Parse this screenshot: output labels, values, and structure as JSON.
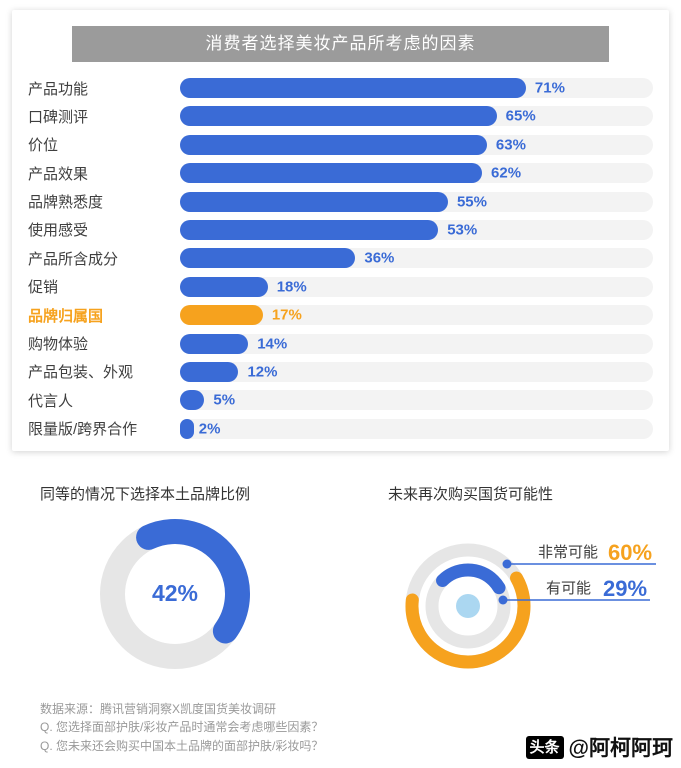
{
  "colors": {
    "blue": "#3A6BD6",
    "orange": "#F6A21E",
    "banner": "#9B9B9B",
    "bar_track": "#F3F3F3",
    "ring_track": "#E6E6E6",
    "center_dot": "#ABD7F1",
    "text_dark": "#3F3F3F",
    "text_gray": "#999999"
  },
  "chart_data": [
    {
      "type": "bar",
      "orientation": "horizontal",
      "title": "消费者选择美妆产品所考虑的因素",
      "unit": "%",
      "xlim": [
        0,
        100
      ],
      "categories": [
        "产品功能",
        "口碑测评",
        "价位",
        "产品效果",
        "品牌熟悉度",
        "使用感受",
        "产品所含成分",
        "促销",
        "品牌归属国",
        "购物体验",
        "产品包装、外观",
        "代言人",
        "限量版/跨界合作"
      ],
      "values": [
        71,
        65,
        63,
        62,
        55,
        53,
        36,
        18,
        17,
        14,
        12,
        5,
        2
      ],
      "highlight_category": "品牌归属国"
    },
    {
      "type": "pie",
      "title": "同等的情况下选择本土品牌比例",
      "values": [
        42
      ],
      "center_label": "42%"
    },
    {
      "type": "pie",
      "title": "未来再次购买国货可能性",
      "series": [
        {
          "name": "非常可能",
          "value": 60,
          "display": "60%"
        },
        {
          "name": "有可能",
          "value": 29,
          "display": "29%"
        }
      ]
    }
  ],
  "footnotes": [
    "数据来源：腾讯营销洞察X凯度国货美妆调研",
    "Q. 您选择面部护肤/彩妆产品时通常会考虑哪些因素？",
    "Q. 您未来还会购买中国本土品牌的面部护肤/彩妆吗？"
  ],
  "watermark": {
    "logo": "头条",
    "handle": "@阿柯阿珂"
  }
}
